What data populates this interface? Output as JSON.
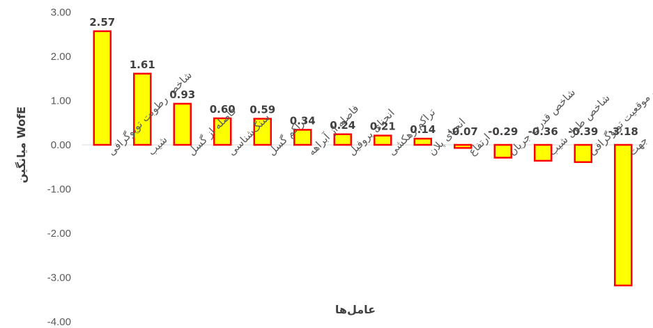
{
  "chart_data": {
    "type": "bar",
    "ylabel": "میانگین WofE",
    "xlabel": "عامل‌ها",
    "ylim": [
      -4.0,
      3.0
    ],
    "yticks": [
      "3.00",
      "2.00",
      "1.00",
      "0.00",
      "-1.00",
      "-2.00",
      "-3.00",
      "-4.00"
    ],
    "ytick_values": [
      3,
      2,
      1,
      0,
      -1,
      -2,
      -3,
      -4
    ],
    "grid": false,
    "legend": "none",
    "bar_fill": "#ffff00",
    "bar_stroke": "#ff0000",
    "categories": [
      "شاخص رطوبت توپوگرافی",
      "شیب",
      "فاصله از گسل",
      "سنگ‌شناسی",
      "تراکم گسل",
      "فاصله از آبراهه",
      "انحنای پروفیل",
      "تراکم زهکشی",
      "انحنای پلان",
      "ارتفاع",
      "شاخص قدرت جریان",
      "شاخص طول شیب",
      "شاخص موقعیت توپوگرافی",
      "جهت"
    ],
    "values": [
      2.57,
      1.61,
      0.93,
      0.6,
      0.59,
      0.34,
      0.24,
      0.21,
      0.14,
      -0.07,
      -0.29,
      -0.36,
      -0.39,
      -3.18
    ],
    "value_labels": [
      "2.57",
      "1.61",
      "0.93",
      "0.60",
      "0.59",
      "0.34",
      "0.24",
      "0.21",
      "0.14",
      "-0.07",
      "-0.29",
      "-0.36",
      "-0.39",
      "-3.18"
    ]
  }
}
